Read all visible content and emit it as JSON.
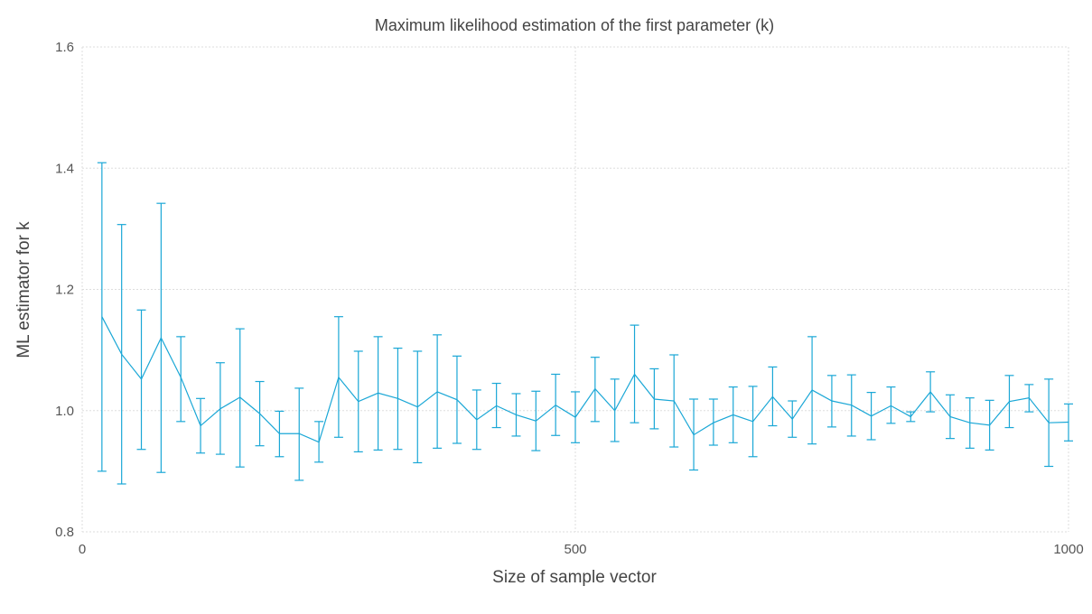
{
  "chart_data": {
    "type": "line",
    "title": "Maximum likelihood estimation of the first parameter (k)",
    "xlabel": "Size of sample vector",
    "ylabel": "ML estimator for k",
    "xlim": [
      0,
      1000
    ],
    "ylim": [
      0.8,
      1.6
    ],
    "xticks": [
      0,
      500,
      1000
    ],
    "yticks": [
      0.8,
      1.0,
      1.2,
      1.4,
      1.6
    ],
    "xtick_labels": [
      "0",
      "500",
      "1000"
    ],
    "ytick_labels": [
      "0.8",
      "1.0",
      "1.2",
      "1.4",
      "1.6"
    ],
    "grid": true,
    "color": "#1aa7d6",
    "error_bars": true,
    "series": [
      {
        "x": [
          20,
          40,
          60,
          80,
          100,
          120,
          140,
          160,
          180,
          200,
          220,
          240,
          260,
          280,
          300,
          320,
          340,
          360,
          380,
          400,
          420,
          440,
          460,
          480,
          500,
          520,
          540,
          560,
          580,
          600,
          620,
          640,
          660,
          680,
          700,
          720,
          740,
          760,
          780,
          800,
          820,
          840,
          860,
          880,
          900,
          920,
          940,
          960,
          980,
          1000
        ],
        "y": [
          1.155,
          1.093,
          1.052,
          1.12,
          1.055,
          0.975,
          1.003,
          1.022,
          0.995,
          0.962,
          0.962,
          0.948,
          1.055,
          1.015,
          1.029,
          1.02,
          1.006,
          1.031,
          1.018,
          0.985,
          1.008,
          0.993,
          0.983,
          1.009,
          0.989,
          1.036,
          1.0,
          1.06,
          1.019,
          1.016,
          0.96,
          0.98,
          0.993,
          0.982,
          1.023,
          0.986,
          1.034,
          1.016,
          1.009,
          0.991,
          1.008,
          0.99,
          1.031,
          0.99,
          0.98,
          0.976,
          1.015,
          1.021,
          0.98,
          0.981
        ],
        "y_lower": [
          0.9,
          0.879,
          0.936,
          0.898,
          0.982,
          0.93,
          0.928,
          0.907,
          0.942,
          0.924,
          0.885,
          0.915,
          0.956,
          0.932,
          0.935,
          0.936,
          0.914,
          0.938,
          0.946,
          0.936,
          0.972,
          0.958,
          0.934,
          0.959,
          0.947,
          0.982,
          0.949,
          0.98,
          0.97,
          0.94,
          0.902,
          0.943,
          0.947,
          0.924,
          0.975,
          0.956,
          0.945,
          0.973,
          0.958,
          0.952,
          0.979,
          0.982,
          0.998,
          0.954,
          0.938,
          0.935,
          0.972,
          0.998,
          0.908,
          0.95
        ],
        "y_upper": [
          1.409,
          1.307,
          1.166,
          1.342,
          1.122,
          1.02,
          1.079,
          1.135,
          1.048,
          0.999,
          1.037,
          0.982,
          1.155,
          1.098,
          1.122,
          1.103,
          1.098,
          1.125,
          1.09,
          1.034,
          1.045,
          1.028,
          1.032,
          1.06,
          1.031,
          1.088,
          1.052,
          1.141,
          1.069,
          1.092,
          1.019,
          1.019,
          1.039,
          1.04,
          1.072,
          1.016,
          1.122,
          1.058,
          1.059,
          1.03,
          1.039,
          0.998,
          1.064,
          1.026,
          1.021,
          1.017,
          1.058,
          1.043,
          1.052,
          1.011
        ]
      }
    ]
  }
}
